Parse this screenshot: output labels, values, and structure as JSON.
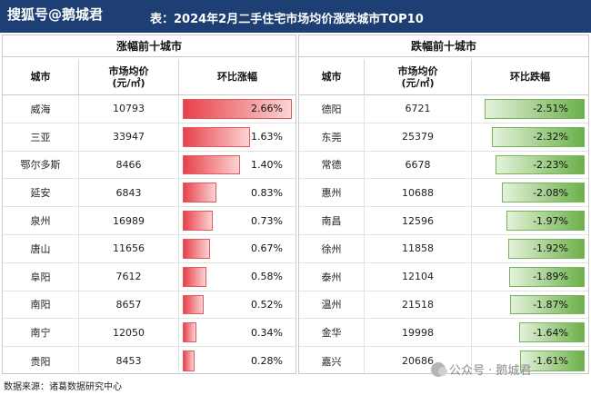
{
  "header": {
    "watermark": "搜狐号@鹅城君",
    "title": "表：2024年2月二手住宅市场均价涨跌城市TOP10"
  },
  "left": {
    "title": "涨幅前十城市",
    "columns": {
      "city": "城市",
      "price": "市场均价\n(元/㎡)",
      "change": "环比涨幅"
    },
    "rows": [
      {
        "city": "威海",
        "price": "10793",
        "change": "2.66%",
        "value": 2.66
      },
      {
        "city": "三亚",
        "price": "33947",
        "change": "1.63%",
        "value": 1.63
      },
      {
        "city": "鄂尔多斯",
        "price": "8466",
        "change": "1.40%",
        "value": 1.4
      },
      {
        "city": "延安",
        "price": "6843",
        "change": "0.83%",
        "value": 0.83
      },
      {
        "city": "泉州",
        "price": "16989",
        "change": "0.73%",
        "value": 0.73
      },
      {
        "city": "唐山",
        "price": "11656",
        "change": "0.67%",
        "value": 0.67
      },
      {
        "city": "阜阳",
        "price": "7612",
        "change": "0.58%",
        "value": 0.58
      },
      {
        "city": "南阳",
        "price": "8657",
        "change": "0.52%",
        "value": 0.52
      },
      {
        "city": "南宁",
        "price": "12050",
        "change": "0.34%",
        "value": 0.34
      },
      {
        "city": "贵阳",
        "price": "8453",
        "change": "0.28%",
        "value": 0.28
      }
    ]
  },
  "right": {
    "title": "跌幅前十城市",
    "columns": {
      "city": "城市",
      "price": "市场均价\n(元/㎡)",
      "change": "环比跌幅"
    },
    "rows": [
      {
        "city": "德阳",
        "price": "6721",
        "change": "-2.51%",
        "value": -2.51
      },
      {
        "city": "东莞",
        "price": "25379",
        "change": "-2.32%",
        "value": -2.32
      },
      {
        "city": "常德",
        "price": "6678",
        "change": "-2.23%",
        "value": -2.23
      },
      {
        "city": "惠州",
        "price": "10688",
        "change": "-2.08%",
        "value": -2.08
      },
      {
        "city": "南昌",
        "price": "12596",
        "change": "-1.97%",
        "value": -1.97
      },
      {
        "city": "徐州",
        "price": "11858",
        "change": "-1.92%",
        "value": -1.92
      },
      {
        "city": "泰州",
        "price": "12104",
        "change": "-1.89%",
        "value": -1.89
      },
      {
        "city": "温州",
        "price": "21518",
        "change": "-1.87%",
        "value": -1.87
      },
      {
        "city": "金华",
        "price": "19998",
        "change": "-1.64%",
        "value": -1.64
      },
      {
        "city": "嘉兴",
        "price": "20686",
        "change": "-1.61%",
        "value": -1.61
      }
    ]
  },
  "footer": {
    "source": "数据来源：诸葛数据研究中心",
    "watermark": "公众号 · 鹅城君"
  },
  "colors": {
    "header_bg": "#1d3f73",
    "up_bar": "#e8414a",
    "down_bar": "#6cb04a"
  }
}
